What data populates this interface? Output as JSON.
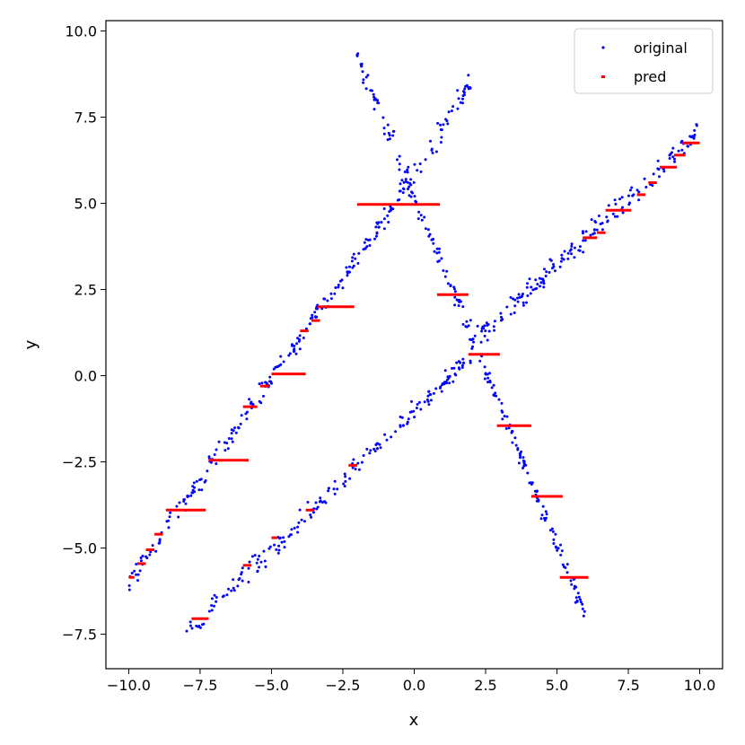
{
  "chart_data": {
    "type": "scatter",
    "title": "",
    "xlabel": "x",
    "ylabel": "y",
    "xlim": [
      -10.8,
      10.8
    ],
    "ylim": [
      -8.5,
      10.3
    ],
    "xticks": [
      -10.0,
      -7.5,
      -5.0,
      -2.5,
      0.0,
      2.5,
      5.0,
      7.5,
      10.0
    ],
    "yticks": [
      -7.5,
      -5.0,
      -2.5,
      0.0,
      2.5,
      5.0,
      7.5,
      10.0
    ],
    "xtick_labels": [
      "−10.0",
      "−7.5",
      "−5.0",
      "−2.5",
      "0.0",
      "2.5",
      "5.0",
      "7.5",
      "10.0"
    ],
    "ytick_labels": [
      "−7.5",
      "−5.0",
      "−2.5",
      "0.0",
      "2.5",
      "5.0",
      "7.5",
      "10.0"
    ],
    "grid": false,
    "legend_position": "top-right",
    "series": [
      {
        "name": "original",
        "color": "#0000ff",
        "marker": "dot",
        "segments": [
          {
            "x_from": -10.0,
            "x_to": -0.2,
            "y_from": -6.0,
            "y_to": 5.6,
            "count": 220,
            "noise": 0.15
          },
          {
            "x_from": -0.2,
            "x_to": 6.0,
            "y_from": 5.6,
            "y_to": -6.9,
            "count": 170,
            "noise": 0.15
          },
          {
            "x_from": -2.0,
            "x_to": -0.2,
            "y_from": 9.2,
            "y_to": 5.7,
            "count": 45,
            "noise": 0.2
          },
          {
            "x_from": -0.2,
            "x_to": 2.0,
            "y_from": 5.4,
            "y_to": 8.6,
            "count": 45,
            "noise": 0.2
          },
          {
            "x_from": -8.0,
            "x_to": 2.0,
            "y_from": -7.5,
            "y_to": 0.6,
            "count": 190,
            "noise": 0.15
          },
          {
            "x_from": 2.0,
            "x_to": 10.0,
            "y_from": 0.9,
            "y_to": 7.1,
            "count": 170,
            "noise": 0.15
          }
        ]
      },
      {
        "name": "pred",
        "color": "#ff0000",
        "marker": "hline",
        "steps": [
          [
            -10.0,
            -9.8,
            -5.85
          ],
          [
            -9.7,
            -9.4,
            -5.45
          ],
          [
            -9.4,
            -9.1,
            -5.05
          ],
          [
            -9.1,
            -8.8,
            -4.6
          ],
          [
            -8.7,
            -7.3,
            -3.9
          ],
          [
            -7.2,
            -5.8,
            -2.45
          ],
          [
            -6.0,
            -5.5,
            -0.9
          ],
          [
            -5.4,
            -5.1,
            -0.3
          ],
          [
            -5.0,
            -3.8,
            0.05
          ],
          [
            -4.0,
            -3.7,
            1.3
          ],
          [
            -3.6,
            -3.3,
            1.6
          ],
          [
            -3.4,
            -2.1,
            2.0
          ],
          [
            -2.0,
            0.9,
            4.97
          ],
          [
            0.8,
            1.9,
            2.35
          ],
          [
            1.9,
            3.0,
            0.62
          ],
          [
            2.9,
            4.1,
            -1.45
          ],
          [
            4.1,
            5.2,
            -3.5
          ],
          [
            5.1,
            6.1,
            -5.85
          ],
          [
            -7.8,
            -7.2,
            -7.05
          ],
          [
            -6.0,
            -5.7,
            -5.5
          ],
          [
            -5.0,
            -4.8,
            -4.7
          ],
          [
            -3.8,
            -3.5,
            -3.9
          ],
          [
            -2.3,
            -2.0,
            -2.6
          ],
          [
            5.9,
            6.4,
            4.0
          ],
          [
            6.4,
            6.7,
            4.15
          ],
          [
            6.7,
            7.6,
            4.8
          ],
          [
            7.8,
            8.1,
            5.25
          ],
          [
            8.2,
            8.5,
            5.6
          ],
          [
            8.6,
            9.2,
            6.05
          ],
          [
            9.1,
            9.5,
            6.4
          ],
          [
            9.4,
            10.0,
            6.75
          ]
        ]
      }
    ]
  }
}
